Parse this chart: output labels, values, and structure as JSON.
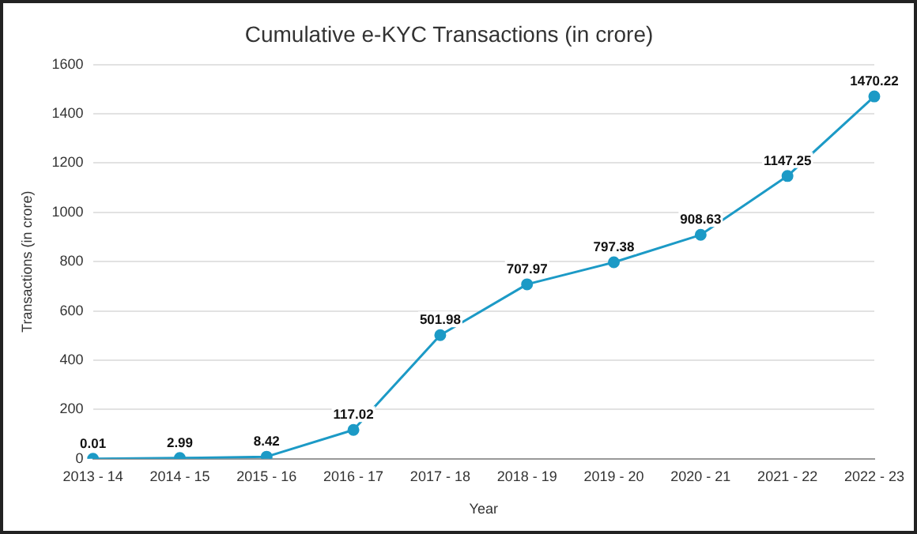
{
  "chart_data": {
    "type": "line",
    "title": "Cumulative e-KYC Transactions (in crore)",
    "xlabel": "Year",
    "ylabel": "Transactions (in crore)",
    "categories": [
      "2013 - 14",
      "2014 - 15",
      "2015 - 16",
      "2016 - 17",
      "2017 - 18",
      "2018 - 19",
      "2019 - 20",
      "2020 - 21",
      "2021 - 22",
      "2022 - 23"
    ],
    "series": [
      {
        "color": "#1c9ac6",
        "values": [
          0.01,
          2.99,
          8.42,
          117.02,
          501.98,
          707.97,
          797.38,
          908.63,
          1147.25,
          1470.22
        ]
      }
    ],
    "ylim": [
      0,
      1600
    ],
    "yticks": [
      0,
      200,
      400,
      600,
      800,
      1000,
      1200,
      1400,
      1600
    ],
    "grid": "y",
    "legend": false,
    "marker": "circle",
    "line_style": "solid",
    "data_labels": true
  }
}
